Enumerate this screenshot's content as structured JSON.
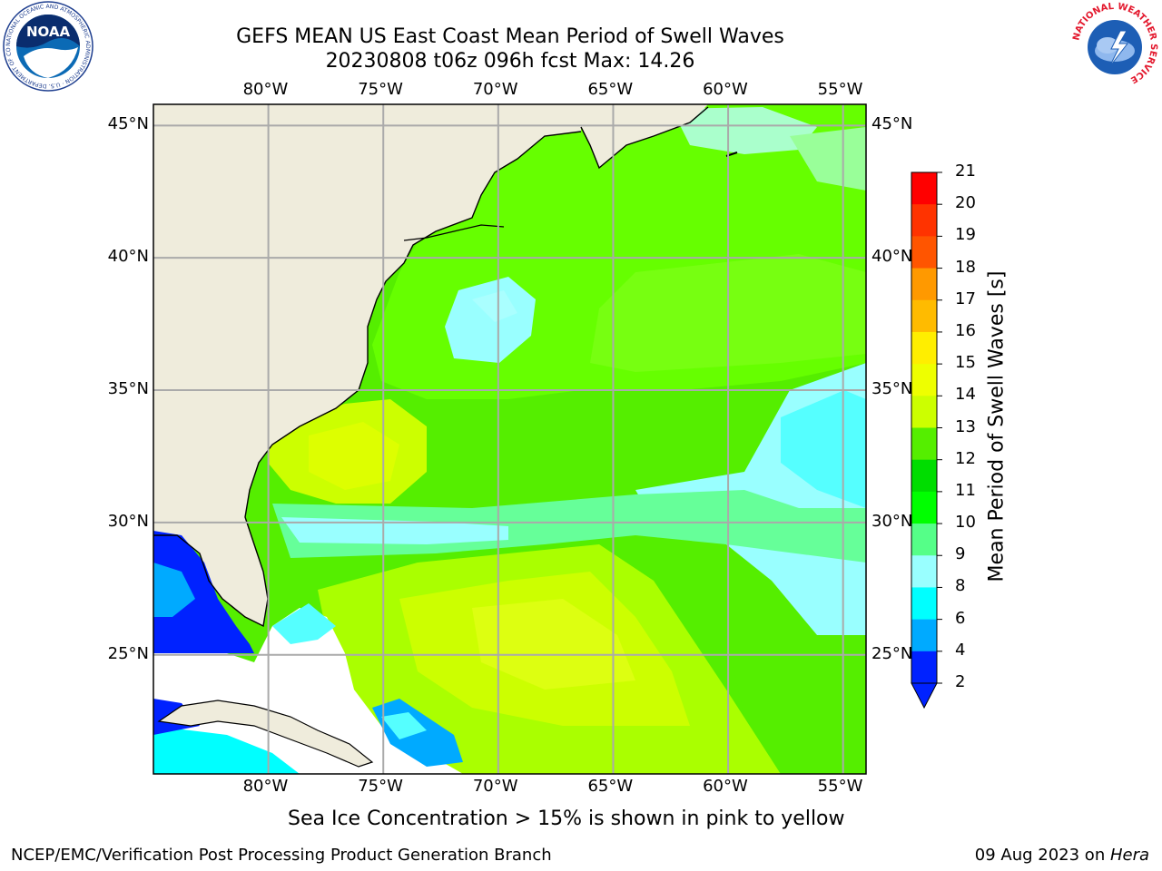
{
  "title": {
    "line1": "GEFS MEAN US East Coast Mean Period of Swell Waves",
    "line2": "20230808 t06z 096h fcst   Max: 14.26"
  },
  "axes": {
    "lon_labels": [
      "80°W",
      "75°W",
      "70°W",
      "65°W",
      "60°W",
      "55°W"
    ],
    "lat_labels": [
      "45°N",
      "40°N",
      "35°N",
      "30°N",
      "25°N"
    ],
    "lon_values": [
      -80,
      -75,
      -70,
      -65,
      -60,
      -55
    ],
    "lat_values": [
      45,
      40,
      35,
      30,
      25
    ],
    "lon_range": [
      -85,
      -54
    ],
    "lat_range": [
      20.5,
      45.8
    ],
    "grid": true
  },
  "colorbar": {
    "label": "Mean Period of Swell Waves [s]",
    "ticks": [
      "21",
      "20",
      "19",
      "18",
      "17",
      "16",
      "15",
      "14",
      "13",
      "12",
      "11",
      "10",
      "9",
      "8",
      "6",
      "4",
      "2"
    ],
    "colors": [
      "#ff0000",
      "#ff3300",
      "#ff5500",
      "#ff7700",
      "#ff9900",
      "#ffbb00",
      "#ffee00",
      "#eeff00",
      "#ccff00",
      "#99ff00",
      "#55ee00",
      "#00dd00",
      "#00ff00",
      "#55ff88",
      "#99ffff",
      "#55ffff",
      "#00ffff",
      "#00aaff",
      "#0022ff"
    ],
    "extend": "min"
  },
  "chart_data": {
    "type": "heatmap",
    "variable": "Mean Period of Swell Waves [s]",
    "max": 14.26,
    "range": [
      2,
      21
    ]
  },
  "logos": {
    "left": "NOAA",
    "left_ring": "NATIONAL OCEANIC AND ATMOSPHERIC ADMINISTRATION · U.S. DEPARTMENT OF COMMERCE",
    "right_ring": "NATIONAL WEATHER SERVICE"
  },
  "note": "Sea Ice Concentration > 15% is shown in pink to yellow",
  "footer": {
    "left": "NCEP/EMC/Verification Post Processing Product Generation Branch",
    "date": "09 Aug 2023 on ",
    "machine": "Hera"
  }
}
